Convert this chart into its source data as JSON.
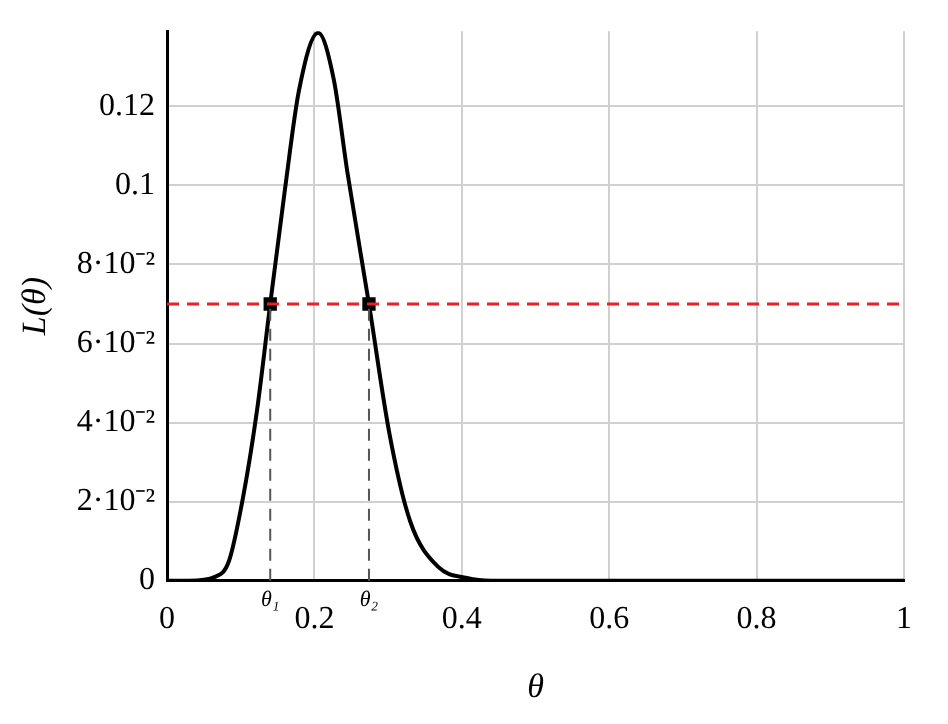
{
  "chart_data": {
    "type": "line",
    "xlabel": "θ",
    "ylabel": "L(θ)",
    "series": [
      {
        "color": "#000000",
        "marker": "none",
        "x": [
          0,
          0.03,
          0.065,
          0.084,
          0.103,
          0.122,
          0.14,
          0.16,
          0.179,
          0.205,
          0.226,
          0.245,
          0.274,
          0.302,
          0.33,
          0.368,
          0.407,
          0.44,
          0.5,
          0.6,
          0.7,
          0.8,
          0.9,
          1
        ],
        "values": [
          0,
          0,
          0.001,
          0.005,
          0.021,
          0.043,
          0.07,
          0.099,
          0.124,
          0.1386,
          0.127,
          0.103,
          0.07,
          0.037,
          0.015,
          0.0035,
          0.0007,
          0,
          0,
          0,
          0,
          0,
          0,
          0
        ]
      },
      {
        "type": "scatter",
        "color": "#000000",
        "marker": "square",
        "x": [
          0.14,
          0.274
        ],
        "values": [
          0.07,
          0.07
        ]
      }
    ],
    "xlim": [
      0,
      1
    ],
    "xticks": [
      0,
      0.2,
      0.4,
      0.6,
      0.8,
      1
    ],
    "ylim": [
      0,
      0.139
    ],
    "yticks": [
      0,
      {
        "value": 0.02,
        "label": "2·10⁻²"
      },
      {
        "value": 0.04,
        "label": "4·10⁻²"
      },
      {
        "value": 0.06,
        "label": "6·10⁻²"
      },
      {
        "value": 0.08,
        "label": "8·10⁻²"
      },
      0.1,
      0.12
    ],
    "grid": true,
    "legend": false,
    "ref_lines": [
      {
        "axis": "y",
        "value": 0.07,
        "color": "#e8212b",
        "line_style": "dashed"
      },
      {
        "axis": "x",
        "value": 0.14,
        "label": "θ₁",
        "color": "#555555",
        "line_style": "dashed"
      },
      {
        "axis": "x",
        "value": 0.274,
        "label": "θ₂",
        "color": "#555555",
        "line_style": "dashed"
      }
    ]
  }
}
